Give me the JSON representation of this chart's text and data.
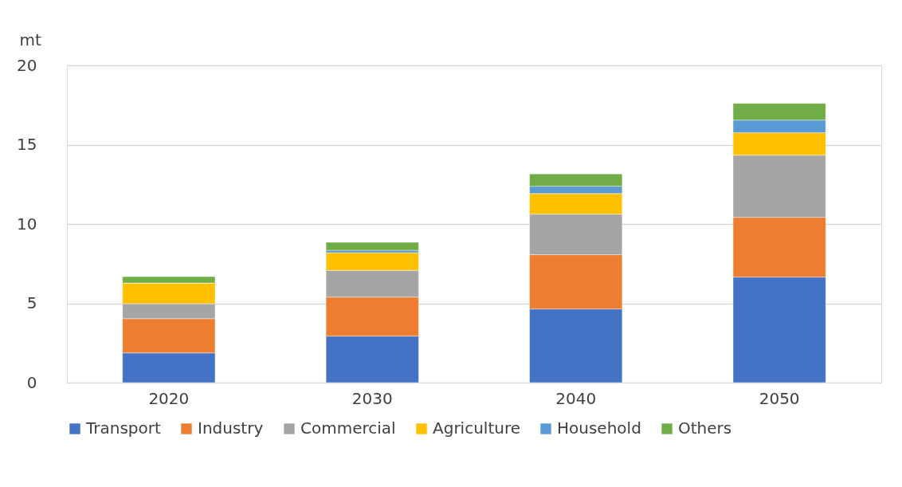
{
  "chart_data": {
    "type": "bar",
    "stacked": true,
    "ylabel": "mt",
    "categories": [
      "2020",
      "2030",
      "2040",
      "2050"
    ],
    "series": [
      {
        "name": "Transport",
        "color": "#4472c4",
        "values": [
          1.87,
          2.93,
          4.64,
          6.65
        ]
      },
      {
        "name": "Industry",
        "color": "#ed7d31",
        "values": [
          2.16,
          2.46,
          3.42,
          3.77
        ]
      },
      {
        "name": "Commercial",
        "color": "#a5a5a5",
        "values": [
          0.94,
          1.68,
          2.56,
          3.92
        ]
      },
      {
        "name": "Agriculture",
        "color": "#ffc000",
        "values": [
          1.31,
          1.12,
          1.3,
          1.42
        ]
      },
      {
        "name": "Household",
        "color": "#5b9bd5",
        "values": [
          0,
          0.15,
          0.46,
          0.79
        ]
      },
      {
        "name": "Others",
        "color": "#70ad47",
        "values": [
          0.4,
          0.5,
          0.77,
          1.05
        ]
      }
    ],
    "ylim": [
      0,
      20
    ],
    "yticks": [
      0,
      5,
      10,
      15,
      20
    ],
    "grid": "y",
    "legend": "bottom"
  }
}
